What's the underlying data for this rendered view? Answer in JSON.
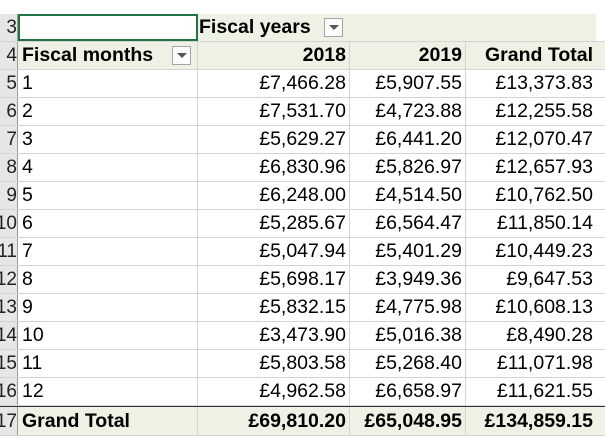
{
  "row_numbers": [
    "3",
    "4",
    "5",
    "6",
    "7",
    "8",
    "9",
    "10",
    "11",
    "12",
    "13",
    "14",
    "15",
    "16",
    "17"
  ],
  "pivot": {
    "column_field_label": "Fiscal years",
    "row_field_label": "Fiscal months",
    "columns": [
      "2018",
      "2019",
      "Grand Total"
    ],
    "rows": [
      {
        "month": "1",
        "y2018": "£7,466.28",
        "y2019": "£5,907.55",
        "total": "£13,373.83"
      },
      {
        "month": "2",
        "y2018": "£7,531.70",
        "y2019": "£4,723.88",
        "total": "£12,255.58"
      },
      {
        "month": "3",
        "y2018": "£5,629.27",
        "y2019": "£6,441.20",
        "total": "£12,070.47"
      },
      {
        "month": "4",
        "y2018": "£6,830.96",
        "y2019": "£5,826.97",
        "total": "£12,657.93"
      },
      {
        "month": "5",
        "y2018": "£6,248.00",
        "y2019": "£4,514.50",
        "total": "£10,762.50"
      },
      {
        "month": "6",
        "y2018": "£5,285.67",
        "y2019": "£6,564.47",
        "total": "£11,850.14"
      },
      {
        "month": "7",
        "y2018": "£5,047.94",
        "y2019": "£5,401.29",
        "total": "£10,449.23"
      },
      {
        "month": "8",
        "y2018": "£5,698.17",
        "y2019": "£3,949.36",
        "total": "£9,647.53"
      },
      {
        "month": "9",
        "y2018": "£5,832.15",
        "y2019": "£4,775.98",
        "total": "£10,608.13"
      },
      {
        "month": "10",
        "y2018": "£3,473.90",
        "y2019": "£5,016.38",
        "total": "£8,490.28"
      },
      {
        "month": "11",
        "y2018": "£5,803.58",
        "y2019": "£5,268.40",
        "total": "£11,071.98"
      },
      {
        "month": "12",
        "y2018": "£4,962.58",
        "y2019": "£6,658.97",
        "total": "£11,621.55"
      }
    ],
    "grand_total": {
      "label": "Grand Total",
      "y2018": "£69,810.20",
      "y2019": "£65,048.95",
      "total": "£134,859.15"
    }
  },
  "icons": {
    "filter_dropdown": "chevron-down-icon"
  },
  "colors": {
    "selection_border": "#217346",
    "header_band": "#eef2e4"
  }
}
